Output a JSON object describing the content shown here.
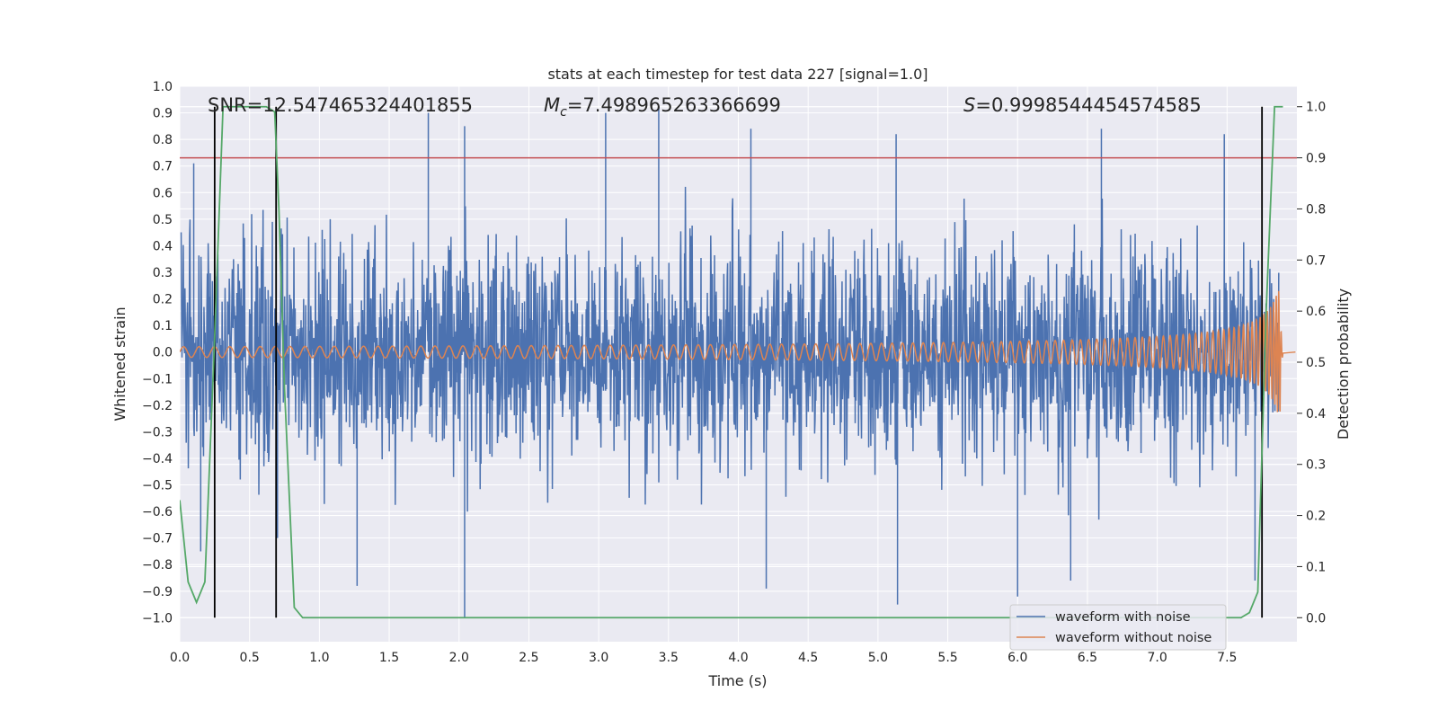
{
  "chart_data": {
    "type": "line",
    "title": "stats at each timestep for test data 227 [signal=1.0]",
    "xlabel": "Time (s)",
    "ylabel": "Whitened strain",
    "y2label": "Detection probability",
    "xlim": [
      0.0,
      8.0
    ],
    "ylim": [
      -1.09,
      1.0
    ],
    "y2lim": [
      -0.047,
      1.04
    ],
    "xticks": [
      "0.0",
      "0.5",
      "1.0",
      "1.5",
      "2.0",
      "2.5",
      "3.0",
      "3.5",
      "4.0",
      "4.5",
      "5.0",
      "5.5",
      "6.0",
      "6.5",
      "7.0",
      "7.5"
    ],
    "yticks": [
      "1.0",
      "0.9",
      "0.8",
      "0.7",
      "0.6",
      "0.5",
      "0.4",
      "0.3",
      "0.2",
      "0.1",
      "0.0",
      "-0.1",
      "-0.2",
      "-0.3",
      "-0.4",
      "-0.5",
      "-0.6",
      "-0.7",
      "-0.8",
      "-0.9",
      "-1.0"
    ],
    "y2ticks": [
      "1.0",
      "0.9",
      "0.8",
      "0.7",
      "0.6",
      "0.5",
      "0.4",
      "0.3",
      "0.2",
      "0.1",
      "0.0"
    ],
    "grid": true,
    "legend_position": "lower-right",
    "annotations": {
      "snr": "SNR=12.547465324401855",
      "mc_symbol": "M",
      "mc_sub": "c",
      "mc_value": "=7.498965263366699",
      "s_symbol": "S",
      "s_value": "=0.9998544454574585"
    },
    "series": [
      {
        "name": "waveform with noise",
        "color": "#4c72b0",
        "description_values": "noise dominated, amplitude envelope",
        "envelope_upper": [
          0.42,
          0.55,
          0.6,
          0.55,
          0.58,
          0.6,
          0.62,
          0.6,
          0.65,
          0.62,
          0.6,
          0.62,
          0.65,
          0.6,
          0.62,
          0.6
        ],
        "envelope_lower": [
          -0.55,
          -0.6,
          -0.62,
          -0.58,
          -0.6,
          -0.62,
          -0.6,
          -0.62,
          -0.6,
          -0.62,
          -0.6,
          -0.62,
          -0.6,
          -0.62,
          -0.6,
          -0.6
        ],
        "peaks": [
          {
            "x": 0.1,
            "y": 0.71
          },
          {
            "x": 0.15,
            "y": -0.75
          },
          {
            "x": 0.7,
            "y": -0.7
          },
          {
            "x": 1.78,
            "y": 0.9
          },
          {
            "x": 1.27,
            "y": -0.88
          },
          {
            "x": 2.04,
            "y": 0.85
          },
          {
            "x": 2.04,
            "y": -1.0
          },
          {
            "x": 3.05,
            "y": 0.9
          },
          {
            "x": 3.43,
            "y": 0.92
          },
          {
            "x": 4.09,
            "y": 0.84
          },
          {
            "x": 4.2,
            "y": -0.89
          },
          {
            "x": 5.13,
            "y": 0.82
          },
          {
            "x": 5.14,
            "y": -0.95
          },
          {
            "x": 6.38,
            "y": -0.86
          },
          {
            "x": 6.6,
            "y": 0.84
          },
          {
            "x": 7.48,
            "y": 0.82
          },
          {
            "x": 6.0,
            "y": -0.92
          },
          {
            "x": 7.7,
            "y": -0.86
          }
        ]
      },
      {
        "name": "waveform without noise",
        "color": "#dd8452",
        "description_values": "chirp signal ending at merger",
        "chirp": {
          "start_time": 0.0,
          "end_time": 7.88,
          "start_amplitude": 0.02,
          "peak_amplitude": 0.38,
          "peak_time": 7.84,
          "min_amplitude": -0.31,
          "ringdown_end": 7.9
        }
      },
      {
        "name": "",
        "color": "#55a868",
        "axis": "right",
        "x": [
          0.0,
          0.06,
          0.12,
          0.18,
          0.25,
          0.31,
          0.36,
          0.62,
          0.68,
          0.71,
          0.75,
          0.82,
          0.88,
          7.6,
          7.66,
          7.72,
          7.78,
          7.84,
          7.9
        ],
        "values": [
          0.23,
          0.07,
          0.03,
          0.07,
          0.55,
          1.0,
          1.0,
          1.0,
          0.99,
          0.8,
          0.45,
          0.02,
          0.0,
          0.0,
          0.01,
          0.05,
          0.6,
          1.0,
          1.0
        ]
      }
    ],
    "threshold_line": {
      "value": 0.9,
      "axis": "right",
      "color": "#c44e52"
    },
    "vertical_lines": [
      0.25,
      0.69,
      7.75
    ]
  }
}
